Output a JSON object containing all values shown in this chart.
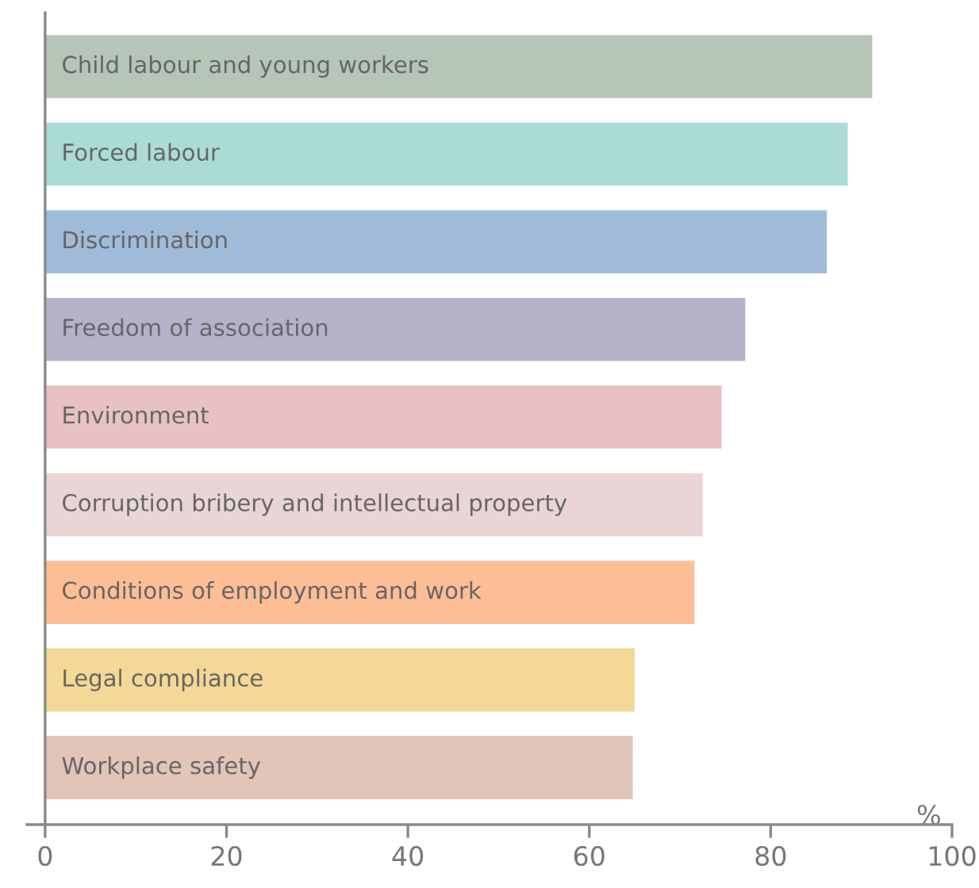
{
  "chart_data": {
    "type": "bar",
    "orientation": "horizontal",
    "xlabel": "%",
    "categories": [
      "Child labour and young workers",
      "Forced labour",
      "Discrimination",
      "Freedom of association",
      "Environment",
      "Corruption bribery and intellectual property",
      "Conditions of employment and work",
      "Legal compliance",
      "Workplace safety"
    ],
    "values": [
      91.2,
      88.5,
      86.2,
      77.2,
      74.6,
      72.5,
      71.6,
      65.0,
      64.8
    ],
    "colors": [
      "#b5c5b8",
      "#aadcd3",
      "#9fbbd8",
      "#b6b1c8",
      "#e8c2c3",
      "#e9d5d5",
      "#fdbe96",
      "#f3d896",
      "#e0c5b8"
    ],
    "xlim": [
      -2,
      100
    ],
    "xticks": [
      0,
      20,
      40,
      60,
      80,
      100
    ],
    "grid": false,
    "legend": false
  }
}
